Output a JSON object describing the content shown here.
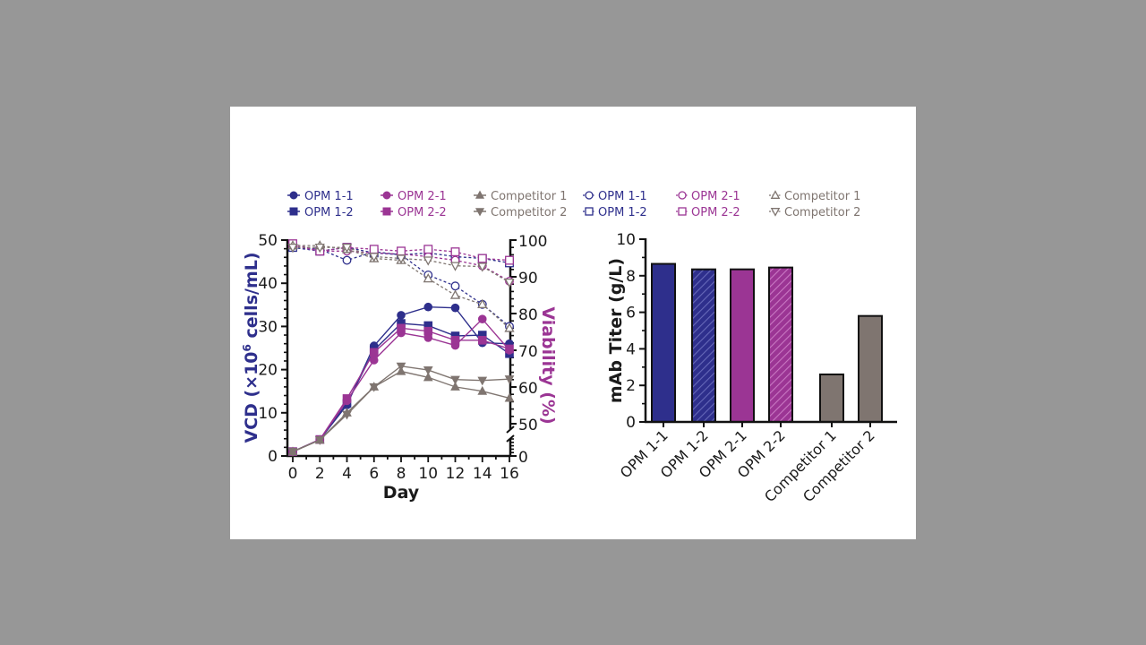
{
  "colors": {
    "background": "#979797",
    "panel": "#ffffff",
    "opm1": "#2e2f8c",
    "opm2": "#9b3594",
    "competitor": "#7f7570",
    "opm1_hatch": "#5a5cb0",
    "opm2_hatch": "#c065bb",
    "axis": "#111111"
  },
  "legend": {
    "filled": [
      {
        "label": "OPM 1-1",
        "marker": "circle",
        "color_key": "opm1"
      },
      {
        "label": "OPM 1-2",
        "marker": "square",
        "color_key": "opm1"
      },
      {
        "label": "OPM 2-1",
        "marker": "circle",
        "color_key": "opm2"
      },
      {
        "label": "OPM 2-2",
        "marker": "square",
        "color_key": "opm2"
      },
      {
        "label": "Competitor 1",
        "marker": "triangle-up",
        "color_key": "competitor"
      },
      {
        "label": "Competitor 2",
        "marker": "triangle-down",
        "color_key": "competitor"
      }
    ],
    "open": [
      {
        "label": "OPM 1-1",
        "marker": "circle",
        "color_key": "opm1"
      },
      {
        "label": "OPM 1-2",
        "marker": "square",
        "color_key": "opm1"
      },
      {
        "label": "OPM 2-1",
        "marker": "circle",
        "color_key": "opm2"
      },
      {
        "label": "OPM 2-2",
        "marker": "square",
        "color_key": "opm2"
      },
      {
        "label": "Competitor 1",
        "marker": "triangle-up",
        "color_key": "competitor"
      },
      {
        "label": "Competitor 2",
        "marker": "triangle-down",
        "color_key": "competitor"
      }
    ]
  },
  "chart_data": [
    {
      "type": "line",
      "title": "",
      "xlabel": "Day",
      "ylabel": "VCD (×10⁶ cells/mL)",
      "ylabel_parts": {
        "prefix": "VCD (×10",
        "sup": "6",
        "suffix": " cells/mL)"
      },
      "y2label": "Viability (%)",
      "x": [
        0,
        2,
        4,
        6,
        8,
        10,
        12,
        14,
        16
      ],
      "xticks": [
        "0",
        "2",
        "4",
        "6",
        "8",
        "10",
        "12",
        "14",
        "16"
      ],
      "ylim": [
        0,
        50
      ],
      "yticks": [
        "0",
        "10",
        "20",
        "30",
        "40",
        "50"
      ],
      "y2lim_broken": {
        "lower": [
          0,
          0
        ],
        "upper": [
          50,
          100
        ]
      },
      "y2ticks": [
        "0",
        "50",
        "60",
        "70",
        "80",
        "90",
        "100"
      ],
      "legend_position": "top",
      "vcd_series": [
        {
          "name": "OPM 1-1",
          "marker": "circle",
          "color_key": "opm1",
          "values": [
            1.0,
            3.8,
            11.8,
            25.5,
            32.6,
            34.5,
            34.3,
            26.2,
            26.0
          ]
        },
        {
          "name": "OPM 1-2",
          "marker": "square",
          "color_key": "opm1",
          "values": [
            1.0,
            3.8,
            12.2,
            24.5,
            30.7,
            30.2,
            27.8,
            28.0,
            23.7
          ]
        },
        {
          "name": "OPM 2-1",
          "marker": "circle",
          "color_key": "opm2",
          "values": [
            1.0,
            3.8,
            12.8,
            22.2,
            28.5,
            27.4,
            25.6,
            31.7,
            24.5
          ]
        },
        {
          "name": "OPM 2-2",
          "marker": "square",
          "color_key": "opm2",
          "values": [
            1.0,
            3.8,
            13.3,
            24.0,
            29.6,
            28.9,
            26.8,
            26.8,
            24.8
          ]
        },
        {
          "name": "Competitor 1",
          "marker": "triangle-up",
          "color_key": "competitor",
          "values": [
            1.0,
            3.7,
            10.0,
            16.0,
            19.6,
            18.2,
            16.0,
            15.0,
            13.4
          ]
        },
        {
          "name": "Competitor 2",
          "marker": "triangle-down",
          "color_key": "competitor",
          "values": [
            1.0,
            3.7,
            9.6,
            16.0,
            20.8,
            19.9,
            17.7,
            17.5,
            17.8
          ]
        }
      ],
      "viability_series": [
        {
          "name": "OPM 1-1",
          "marker": "circle",
          "color_key": "opm1",
          "values": [
            98.0,
            97.5,
            94.5,
            96.8,
            96.0,
            90.5,
            87.5,
            82.5,
            76.5
          ]
        },
        {
          "name": "OPM 1-2",
          "marker": "square",
          "color_key": "opm1",
          "values": [
            98.0,
            97.0,
            98.0,
            96.5,
            96.0,
            96.5,
            95.5,
            95.0,
            93.8
          ]
        },
        {
          "name": "OPM 2-1",
          "marker": "circle",
          "color_key": "opm2",
          "values": [
            98.5,
            97.0,
            97.0,
            96.5,
            96.2,
            95.5,
            94.5,
            93.0,
            88.8
          ]
        },
        {
          "name": "OPM 2-2",
          "marker": "square",
          "color_key": "opm2",
          "values": [
            99.0,
            97.0,
            98.0,
            97.5,
            97.0,
            97.5,
            96.8,
            95.0,
            94.5
          ]
        },
        {
          "name": "Competitor 1",
          "marker": "triangle-up",
          "color_key": "competitor",
          "values": [
            98.5,
            98.5,
            97.5,
            95.0,
            94.5,
            89.5,
            85.0,
            82.5,
            76.0
          ]
        },
        {
          "name": "Competitor 2",
          "marker": "triangle-down",
          "color_key": "competitor",
          "values": [
            98.0,
            98.0,
            98.0,
            95.5,
            95.0,
            94.5,
            93.0,
            92.8,
            88.5
          ]
        }
      ]
    },
    {
      "type": "bar",
      "title": "",
      "xlabel": "",
      "ylabel": "mAb Titer (g/L)",
      "ylim": [
        0,
        10
      ],
      "yticks": [
        "0",
        "2",
        "4",
        "6",
        "8",
        "10"
      ],
      "categories": [
        "OPM 1-1",
        "OPM 1-2",
        "OPM 2-1",
        "OPM 2-2",
        "Competitor 1",
        "Competitor 2"
      ],
      "values": [
        8.65,
        8.35,
        8.35,
        8.45,
        2.6,
        5.8
      ],
      "bar_styles": [
        {
          "color_key": "opm1",
          "hatched": false
        },
        {
          "color_key": "opm1",
          "hatched": true
        },
        {
          "color_key": "opm2",
          "hatched": false
        },
        {
          "color_key": "opm2",
          "hatched": true
        },
        {
          "color_key": "competitor",
          "hatched": false
        },
        {
          "color_key": "competitor",
          "hatched": false
        }
      ]
    }
  ]
}
